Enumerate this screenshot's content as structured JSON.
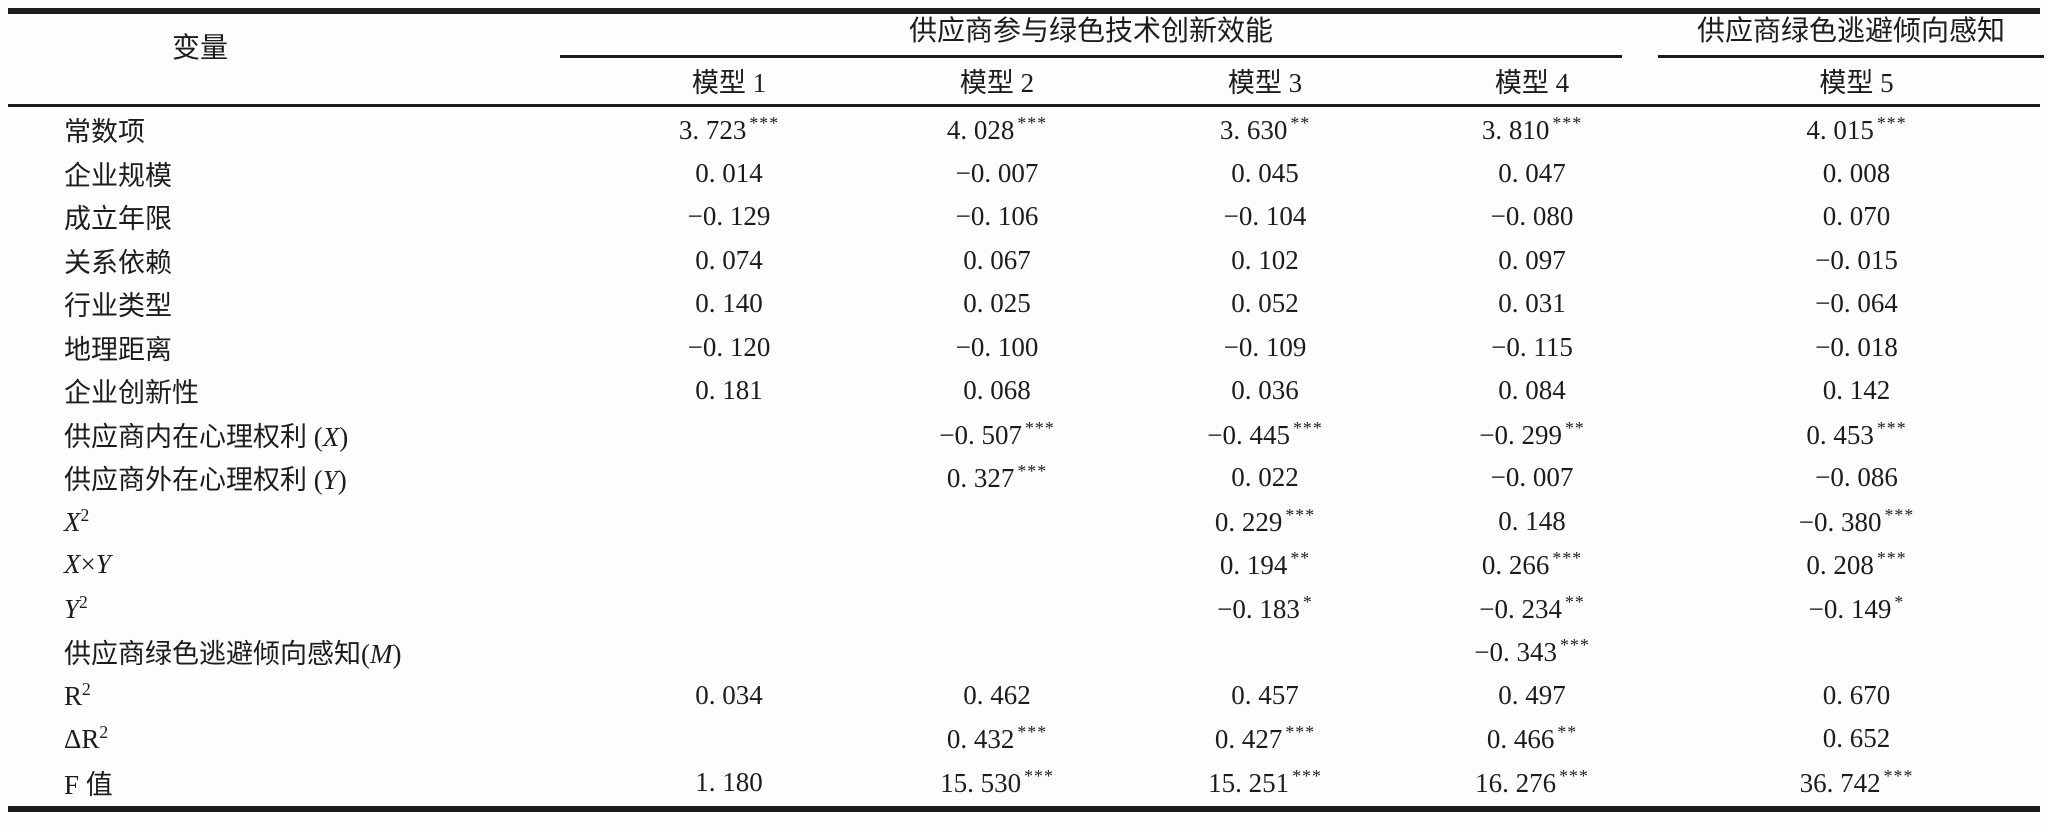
{
  "table": {
    "variable_header": "变量",
    "column_groups": [
      {
        "label": "供应商参与绿色技术创新效能"
      },
      {
        "label": "供应商绿色逃避倾向感知"
      }
    ],
    "model_headers": [
      "模型 1",
      "模型 2",
      "模型 3",
      "模型 4",
      "模型 5"
    ],
    "rows": [
      {
        "label": [
          {
            "t": "常数项"
          }
        ],
        "cells": [
          {
            "v": "3. 723",
            "s": "***"
          },
          {
            "v": "4. 028",
            "s": "***"
          },
          {
            "v": "3. 630",
            "s": "**"
          },
          {
            "v": "3. 810",
            "s": "***"
          },
          {
            "v": "4. 015",
            "s": "***"
          }
        ]
      },
      {
        "label": [
          {
            "t": "企业规模"
          }
        ],
        "cells": [
          {
            "v": "0. 014",
            "s": ""
          },
          {
            "v": "−0. 007",
            "s": ""
          },
          {
            "v": "0. 045",
            "s": ""
          },
          {
            "v": "0. 047",
            "s": ""
          },
          {
            "v": "0. 008",
            "s": ""
          }
        ]
      },
      {
        "label": [
          {
            "t": "成立年限"
          }
        ],
        "cells": [
          {
            "v": "−0. 129",
            "s": ""
          },
          {
            "v": "−0. 106",
            "s": ""
          },
          {
            "v": "−0. 104",
            "s": ""
          },
          {
            "v": "−0. 080",
            "s": ""
          },
          {
            "v": "0. 070",
            "s": ""
          }
        ]
      },
      {
        "label": [
          {
            "t": "关系依赖"
          }
        ],
        "cells": [
          {
            "v": "0. 074",
            "s": ""
          },
          {
            "v": "0. 067",
            "s": ""
          },
          {
            "v": "0. 102",
            "s": ""
          },
          {
            "v": "0. 097",
            "s": ""
          },
          {
            "v": "−0. 015",
            "s": ""
          }
        ]
      },
      {
        "label": [
          {
            "t": "行业类型"
          }
        ],
        "cells": [
          {
            "v": "0. 140",
            "s": ""
          },
          {
            "v": "0. 025",
            "s": ""
          },
          {
            "v": "0. 052",
            "s": ""
          },
          {
            "v": "0. 031",
            "s": ""
          },
          {
            "v": "−0. 064",
            "s": ""
          }
        ]
      },
      {
        "label": [
          {
            "t": "地理距离"
          }
        ],
        "cells": [
          {
            "v": "−0. 120",
            "s": ""
          },
          {
            "v": "−0. 100",
            "s": ""
          },
          {
            "v": "−0. 109",
            "s": ""
          },
          {
            "v": "−0. 115",
            "s": ""
          },
          {
            "v": "−0. 018",
            "s": ""
          }
        ]
      },
      {
        "label": [
          {
            "t": "企业创新性"
          }
        ],
        "cells": [
          {
            "v": "0. 181",
            "s": ""
          },
          {
            "v": "0. 068",
            "s": ""
          },
          {
            "v": "0. 036",
            "s": ""
          },
          {
            "v": "0. 084",
            "s": ""
          },
          {
            "v": "0. 142",
            "s": ""
          }
        ]
      },
      {
        "label": [
          {
            "t": "供应商内在心理权利 ("
          },
          {
            "t": "X",
            "i": true
          },
          {
            "t": ")"
          }
        ],
        "cells": [
          {
            "v": "",
            "s": ""
          },
          {
            "v": "−0. 507",
            "s": "***"
          },
          {
            "v": "−0. 445",
            "s": "***"
          },
          {
            "v": "−0. 299",
            "s": "**"
          },
          {
            "v": "0. 453",
            "s": "***"
          }
        ]
      },
      {
        "label": [
          {
            "t": "供应商外在心理权利 ("
          },
          {
            "t": "Y",
            "i": true
          },
          {
            "t": ")"
          }
        ],
        "cells": [
          {
            "v": "",
            "s": ""
          },
          {
            "v": "0. 327",
            "s": "***"
          },
          {
            "v": "0. 022",
            "s": ""
          },
          {
            "v": "−0. 007",
            "s": ""
          },
          {
            "v": "−0. 086",
            "s": ""
          }
        ]
      },
      {
        "label": [
          {
            "t": "X",
            "i": true
          },
          {
            "t": "2",
            "sup": true
          }
        ],
        "cells": [
          {
            "v": "",
            "s": ""
          },
          {
            "v": "",
            "s": ""
          },
          {
            "v": "0. 229",
            "s": "***"
          },
          {
            "v": "0. 148",
            "s": ""
          },
          {
            "v": "−0. 380",
            "s": "***"
          }
        ]
      },
      {
        "label": [
          {
            "t": "X",
            "i": true
          },
          {
            "t": "×"
          },
          {
            "t": "Y",
            "i": true
          }
        ],
        "cells": [
          {
            "v": "",
            "s": ""
          },
          {
            "v": "",
            "s": ""
          },
          {
            "v": "0. 194",
            "s": "**"
          },
          {
            "v": "0. 266",
            "s": "***"
          },
          {
            "v": "0. 208",
            "s": "***"
          }
        ]
      },
      {
        "label": [
          {
            "t": "Y",
            "i": true
          },
          {
            "t": "2",
            "sup": true
          }
        ],
        "cells": [
          {
            "v": "",
            "s": ""
          },
          {
            "v": "",
            "s": ""
          },
          {
            "v": "−0. 183",
            "s": "*"
          },
          {
            "v": "−0. 234",
            "s": "**"
          },
          {
            "v": "−0. 149",
            "s": "*"
          }
        ]
      },
      {
        "label": [
          {
            "t": "供应商绿色逃避倾向感知("
          },
          {
            "t": "M",
            "i": true
          },
          {
            "t": ")"
          }
        ],
        "cells": [
          {
            "v": "",
            "s": ""
          },
          {
            "v": "",
            "s": ""
          },
          {
            "v": "",
            "s": ""
          },
          {
            "v": "−0. 343",
            "s": "***"
          },
          {
            "v": "",
            "s": ""
          }
        ]
      },
      {
        "label": [
          {
            "t": "R"
          },
          {
            "t": "2",
            "sup": true
          }
        ],
        "cells": [
          {
            "v": "0. 034",
            "s": ""
          },
          {
            "v": "0. 462",
            "s": ""
          },
          {
            "v": "0. 457",
            "s": ""
          },
          {
            "v": "0. 497",
            "s": ""
          },
          {
            "v": "0. 670",
            "s": ""
          }
        ]
      },
      {
        "label": [
          {
            "t": "ΔR"
          },
          {
            "t": "2",
            "sup": true
          }
        ],
        "cells": [
          {
            "v": "",
            "s": ""
          },
          {
            "v": "0. 432",
            "s": "***"
          },
          {
            "v": "0. 427",
            "s": "***"
          },
          {
            "v": "0. 466",
            "s": "**"
          },
          {
            "v": "0. 652",
            "s": ""
          }
        ]
      },
      {
        "label": [
          {
            "t": "F 值"
          }
        ],
        "cells": [
          {
            "v": "1. 180",
            "s": ""
          },
          {
            "v": "15. 530",
            "s": "***"
          },
          {
            "v": "15. 251",
            "s": "***"
          },
          {
            "v": "16. 276",
            "s": "***"
          },
          {
            "v": "36. 742",
            "s": "***"
          }
        ]
      }
    ]
  }
}
